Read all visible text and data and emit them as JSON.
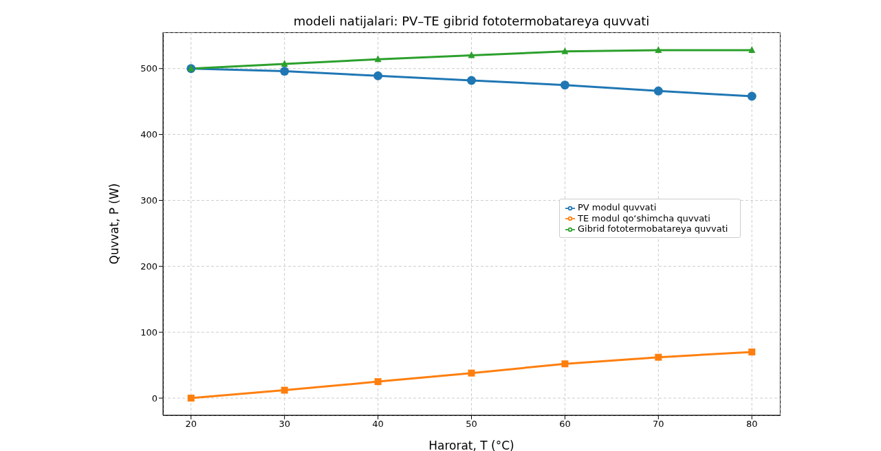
{
  "chart_data": {
    "type": "line",
    "title": "modeli natijalari: PV–TE gibrid fototermobatareya quvvati",
    "xlabel": "Harorat, T (°C)",
    "ylabel": "Quvvat, P (W)",
    "x": [
      20,
      30,
      40,
      50,
      60,
      70,
      80
    ],
    "series": [
      {
        "name": "PV modul quvvati",
        "color": "#1f77b4",
        "marker": "circle",
        "values": [
          500,
          496,
          489,
          482,
          475,
          466,
          458
        ]
      },
      {
        "name": "TE modul qo‘shimcha quvvati",
        "color": "#ff7f0e",
        "marker": "square",
        "values": [
          0,
          12,
          25,
          38,
          52,
          62,
          70
        ]
      },
      {
        "name": "Gibrid fototermobatareya quvvati",
        "color": "#2ca02c",
        "marker": "triangle",
        "values": [
          500,
          507,
          514,
          520,
          526,
          528,
          528
        ]
      }
    ],
    "xlim": [
      17,
      83
    ],
    "xticks": [
      20,
      30,
      40,
      50,
      60,
      70,
      80
    ],
    "ylim": [
      -26,
      555
    ],
    "yticks": [
      0,
      100,
      200,
      300,
      400,
      500
    ],
    "grid": true,
    "legend": "right",
    "line_style": "solid"
  }
}
